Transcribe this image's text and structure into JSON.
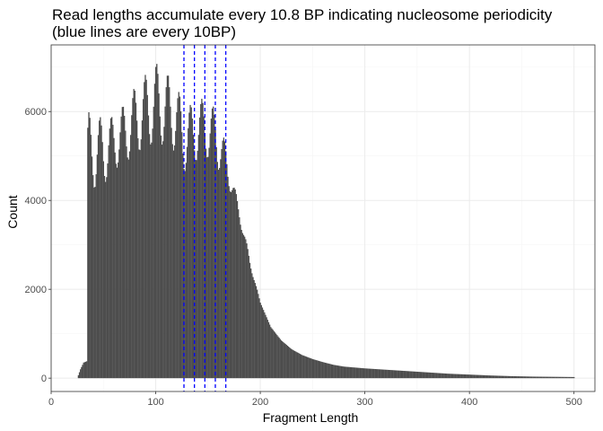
{
  "chart_data": {
    "type": "bar",
    "title_lines": [
      "Read lengths accumulate every 10.8 BP indicating nucleosome periodicity",
      "(blue lines are every 10BP)"
    ],
    "xlabel": "Fragment Length",
    "ylabel": "Count",
    "xlim": [
      0,
      520
    ],
    "ylim": [
      -300,
      7500
    ],
    "x_ticks": [
      0,
      100,
      200,
      300,
      400,
      500
    ],
    "y_ticks": [
      0,
      2000,
      4000,
      6000
    ],
    "grid": true,
    "bar_color": "#4d4d4d",
    "vline_color": "#0000ff",
    "vlines": [
      127,
      137,
      147,
      157,
      167
    ],
    "histogram_profile_x": [
      25,
      28,
      31,
      34,
      35,
      36,
      40,
      45,
      50,
      60,
      70,
      80,
      90,
      100,
      110,
      120,
      127,
      135,
      145,
      155,
      162,
      170,
      180,
      190,
      200,
      210,
      220,
      230,
      240,
      250,
      260,
      270,
      280,
      300,
      320,
      340,
      360,
      380,
      400,
      420,
      440,
      460,
      480,
      500
    ],
    "histogram_profile_y": [
      0,
      200,
      350,
      380,
      4800,
      5000,
      5200,
      5050,
      5100,
      5300,
      5500,
      5800,
      6000,
      6200,
      6050,
      5850,
      5350,
      5500,
      5650,
      5500,
      5200,
      4600,
      3700,
      2600,
      1700,
      1150,
      850,
      650,
      520,
      430,
      360,
      300,
      260,
      220,
      190,
      160,
      130,
      100,
      80,
      60,
      45,
      35,
      30,
      25
    ],
    "peak_spacing": 10.8,
    "peak_phase": 36,
    "peak_amplitude_profile_x": [
      35,
      60,
      100,
      130,
      160,
      175,
      200
    ],
    "peak_amplitude_profile_y": [
      1000,
      600,
      900,
      700,
      600,
      200,
      0
    ]
  }
}
